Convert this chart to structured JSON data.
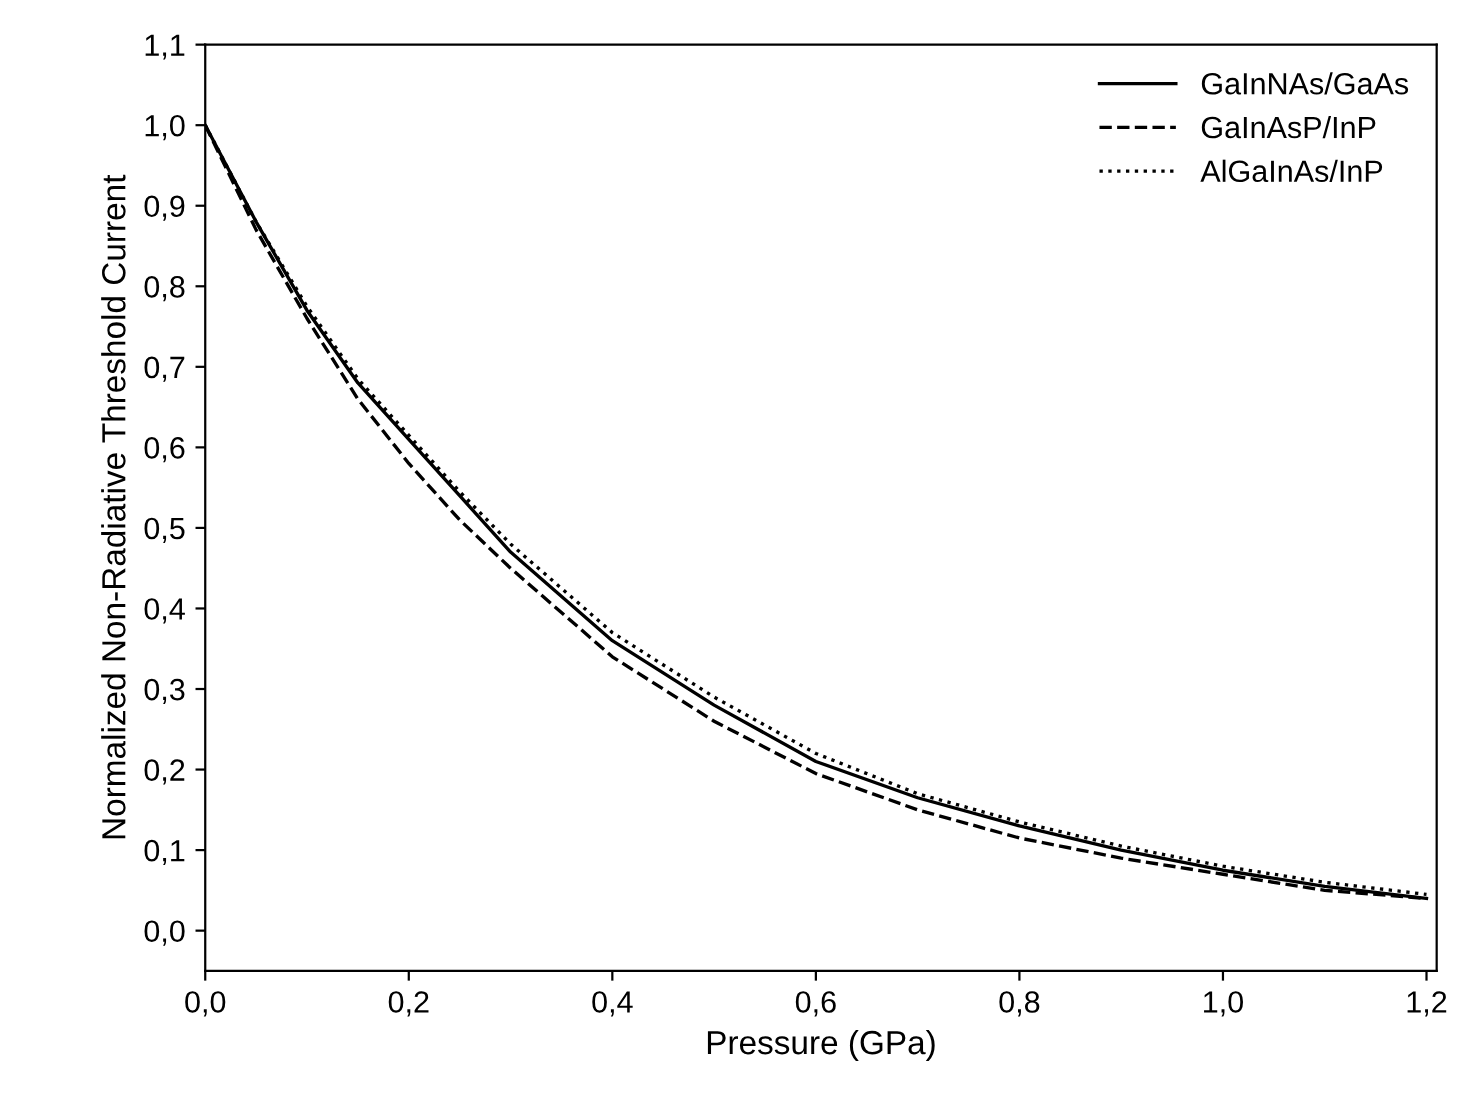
{
  "chart_data": {
    "type": "line",
    "xlabel": "Pressure (GPa)",
    "ylabel": "Normalized Non-Radiative Threshold Current",
    "xlim": [
      0,
      1.21
    ],
    "ylim": [
      -0.05,
      1.1
    ],
    "xticks": [
      {
        "value": 0,
        "label": "0,0"
      },
      {
        "value": 0.2,
        "label": "0,2"
      },
      {
        "value": 0.4,
        "label": "0,4"
      },
      {
        "value": 0.6,
        "label": "0,6"
      },
      {
        "value": 0.8,
        "label": "0,8"
      },
      {
        "value": 1.0,
        "label": "1,0"
      },
      {
        "value": 1.2,
        "label": "1,2"
      }
    ],
    "yticks": [
      {
        "value": 0,
        "label": "0,0"
      },
      {
        "value": 0.1,
        "label": "0,1"
      },
      {
        "value": 0.2,
        "label": "0,2"
      },
      {
        "value": 0.3,
        "label": "0,3"
      },
      {
        "value": 0.4,
        "label": "0,4"
      },
      {
        "value": 0.5,
        "label": "0,5"
      },
      {
        "value": 0.6,
        "label": "0,6"
      },
      {
        "value": 0.7,
        "label": "0,7"
      },
      {
        "value": 0.8,
        "label": "0,8"
      },
      {
        "value": 0.9,
        "label": "0,9"
      },
      {
        "value": 1.0,
        "label": "1,0"
      },
      {
        "value": 1.1,
        "label": "1,1"
      }
    ],
    "x": [
      0,
      0.05,
      0.1,
      0.15,
      0.2,
      0.25,
      0.3,
      0.4,
      0.5,
      0.6,
      0.7,
      0.8,
      0.9,
      1.0,
      1.1,
      1.2
    ],
    "legend": "top right",
    "grid": false,
    "marker": "none",
    "series": [
      {
        "name": "GaInNAs/GaAs",
        "color": "#000000",
        "line_style": "solid",
        "values": [
          1.0,
          0.88,
          0.77,
          0.68,
          0.61,
          0.54,
          0.47,
          0.36,
          0.28,
          0.21,
          0.165,
          0.13,
          0.1,
          0.075,
          0.055,
          0.04
        ]
      },
      {
        "name": "GaInAsP/InP",
        "color": "#000000",
        "line_style": "dashed",
        "values": [
          1.0,
          0.87,
          0.76,
          0.66,
          0.58,
          0.51,
          0.45,
          0.34,
          0.26,
          0.195,
          0.15,
          0.115,
          0.09,
          0.07,
          0.05,
          0.04
        ]
      },
      {
        "name": "AlGaInAs/InP",
        "color": "#000000",
        "line_style": "dotted",
        "values": [
          1.0,
          0.88,
          0.775,
          0.685,
          0.615,
          0.545,
          0.48,
          0.37,
          0.29,
          0.22,
          0.17,
          0.135,
          0.105,
          0.08,
          0.06,
          0.045
        ]
      }
    ]
  }
}
